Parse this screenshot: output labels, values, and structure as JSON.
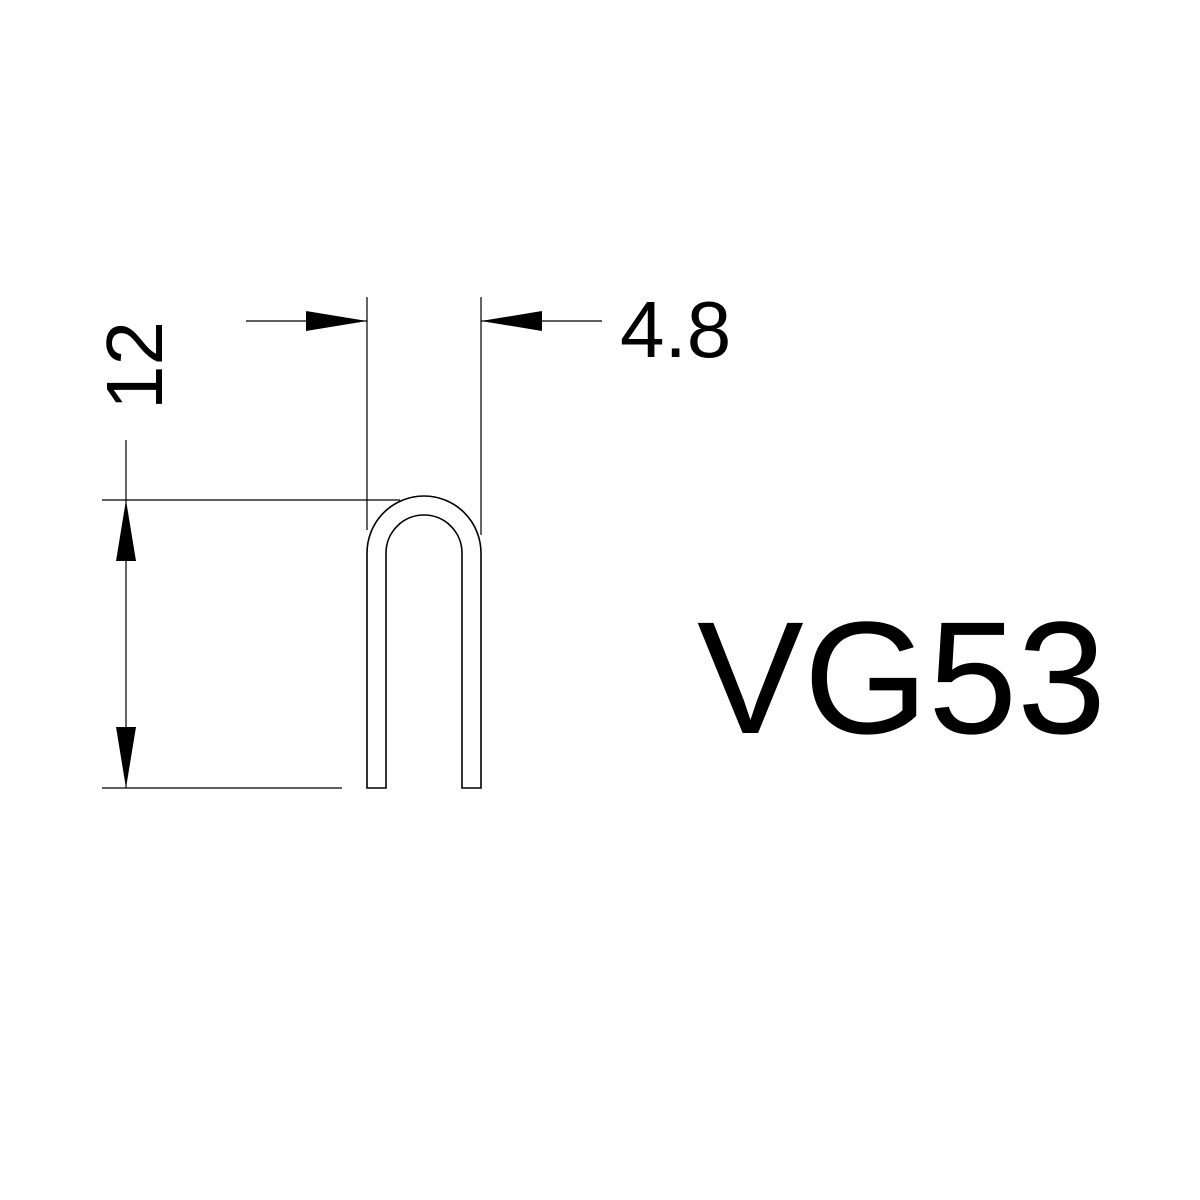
{
  "drawing": {
    "model_code": "VG53",
    "dimensions": {
      "width": {
        "label": "4.8",
        "value": 4.8
      },
      "height": {
        "label": "12",
        "value": 12
      }
    },
    "colors": {
      "line": "#000000",
      "background": "#ffffff"
    }
  }
}
